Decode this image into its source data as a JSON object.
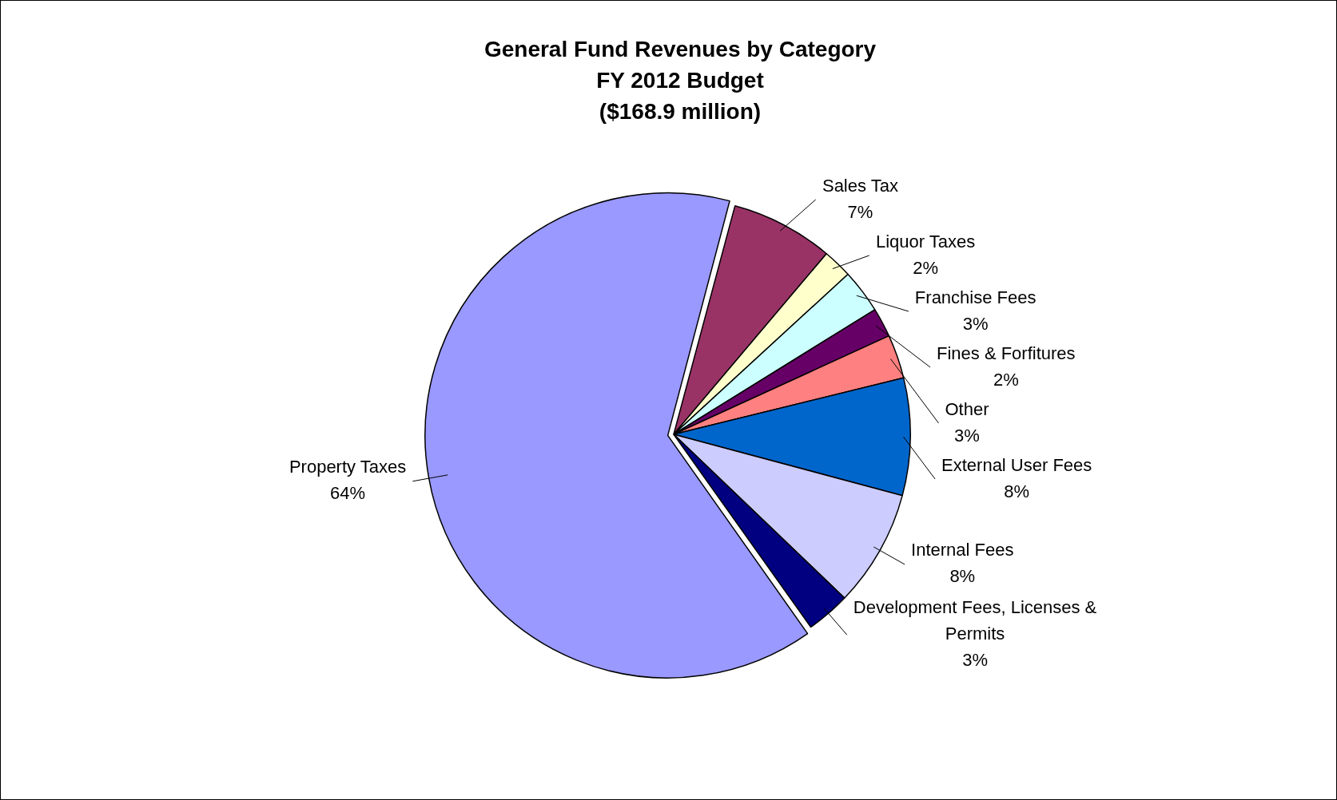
{
  "chart_data": {
    "type": "pie",
    "title": "General Fund Revenues by Category",
    "subtitle": "FY 2012 Budget\n($168.9 million)",
    "categories": [
      "Sales Tax",
      "Liquor Taxes",
      "Franchise Fees",
      "Fines & Forfitures",
      "Other",
      "External User Fees",
      "Internal Fees",
      "Development Fees, Licenses & Permits",
      "Property Taxes"
    ],
    "values": [
      7,
      2,
      3,
      2,
      3,
      8,
      8,
      3,
      64
    ],
    "colors": [
      "#993366",
      "#ffffcc",
      "#ccffff",
      "#660066",
      "#ff8080",
      "#0066cc",
      "#ccccff",
      "#000080",
      "#9999ff"
    ],
    "value_labels": [
      "7%",
      "2%",
      "3%",
      "2%",
      "3%",
      "8%",
      "8%",
      "3%",
      "64%"
    ]
  }
}
